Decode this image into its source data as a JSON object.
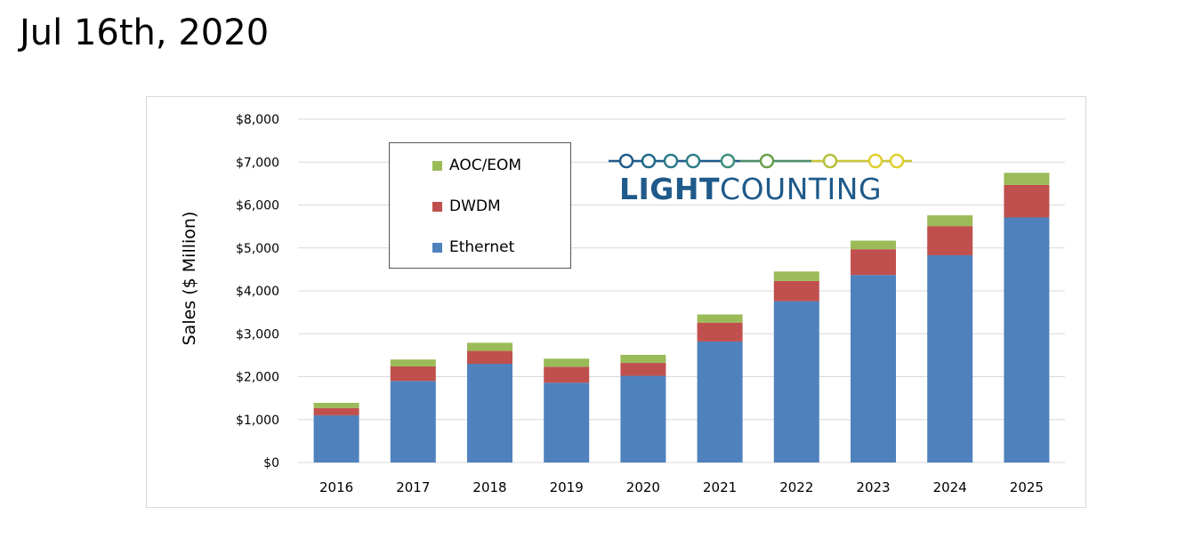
{
  "header": {
    "date": "Jul 16th, 2020"
  },
  "logo": {
    "text_bold": "LIGHT",
    "text_light": "COUNTING",
    "colors": [
      "#1f5a8a",
      "#3f8f7a",
      "#7aa33b",
      "#c9c63a",
      "#e0cf2c"
    ]
  },
  "colors": {
    "ethernet": "#4f81bd",
    "dwdm": "#c0504d",
    "aoc_eom": "#9bbb59",
    "grid": "#d9d9d9"
  },
  "chart_data": {
    "type": "bar",
    "stacked": true,
    "categories": [
      "2016",
      "2017",
      "2018",
      "2019",
      "2020",
      "2021",
      "2022",
      "2023",
      "2024",
      "2025"
    ],
    "series": [
      {
        "name": "Ethernet",
        "values": [
          1100,
          1900,
          2300,
          1860,
          2020,
          2820,
          3760,
          4370,
          4830,
          5710
        ]
      },
      {
        "name": "DWDM",
        "values": [
          170,
          340,
          300,
          370,
          300,
          440,
          470,
          600,
          680,
          760
        ]
      },
      {
        "name": "AOC/EOM",
        "values": [
          120,
          160,
          190,
          190,
          190,
          190,
          220,
          200,
          250,
          280
        ]
      }
    ],
    "ylabel": "Sales ($ Million)",
    "xlabel": "",
    "ylim": [
      0,
      8000
    ],
    "yticks": [
      0,
      1000,
      2000,
      3000,
      4000,
      5000,
      6000,
      7000,
      8000
    ],
    "ytick_labels": [
      "$0",
      "$1,000",
      "$2,000",
      "$3,000",
      "$4,000",
      "$5,000",
      "$6,000",
      "$7,000",
      "$8,000"
    ],
    "legend": {
      "placement": "top-left",
      "order": [
        "AOC/EOM",
        "DWDM",
        "Ethernet"
      ]
    },
    "grid": true
  }
}
